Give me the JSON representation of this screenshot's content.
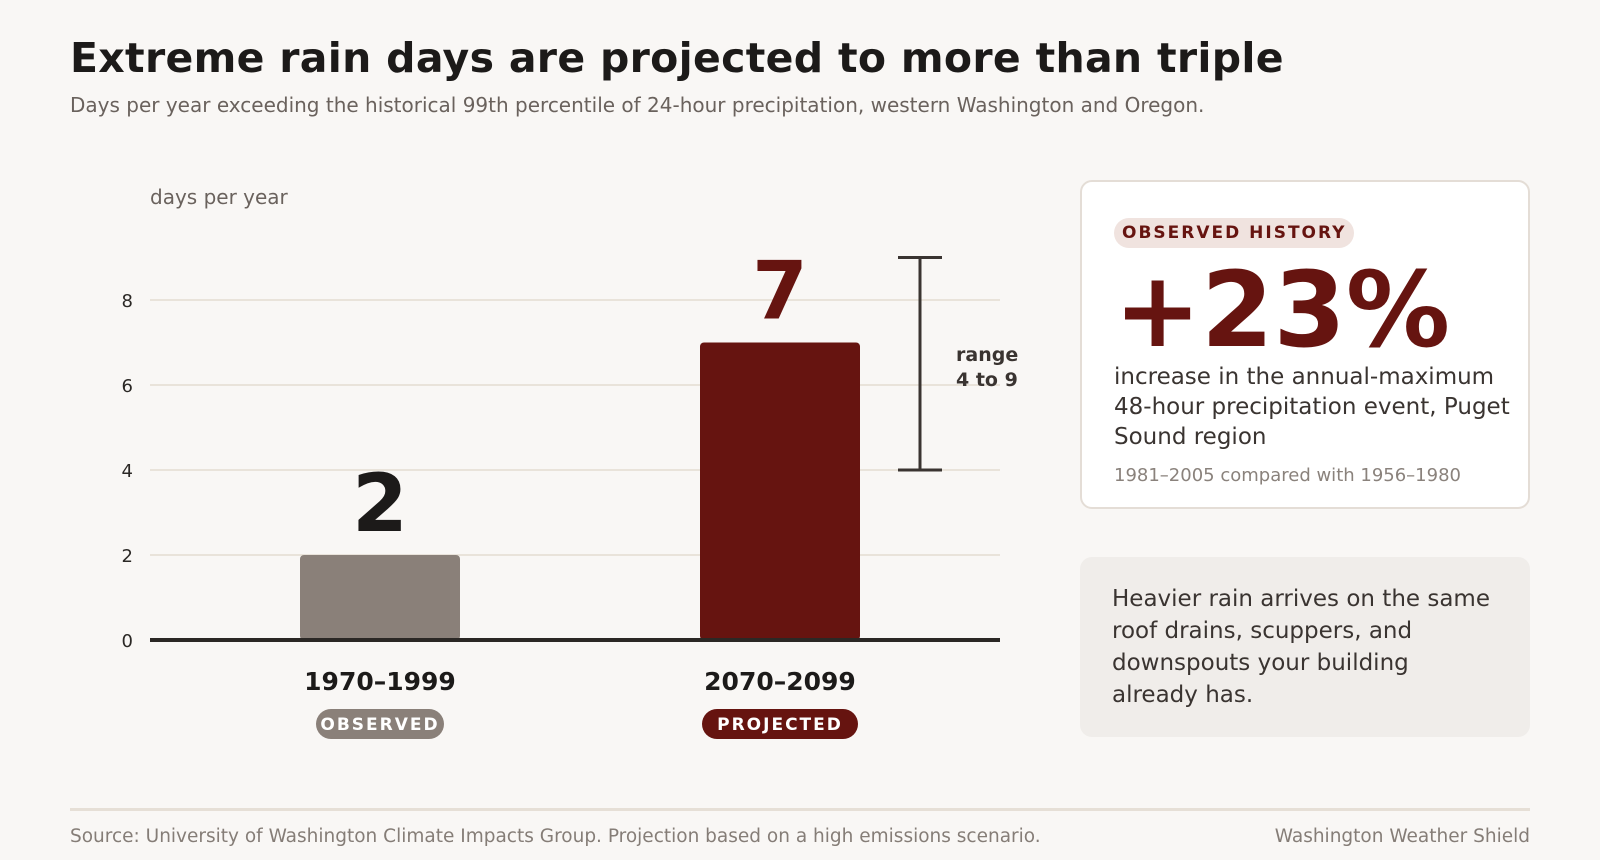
{
  "header": {
    "title": "Extreme rain days are projected to more than triple",
    "subtitle": "Days per year exceeding the historical 99th percentile of 24-hour precipitation, western Washington and Oregon."
  },
  "chart_data": {
    "type": "bar",
    "categories": [
      "1970–1999",
      "2070–2099"
    ],
    "values": [
      2,
      7
    ],
    "value_labels": [
      "2",
      "7"
    ],
    "category_badges": [
      "OBSERVED",
      "PROJECTED"
    ],
    "ylabel": "days per year",
    "yticks": [
      "0",
      "2",
      "4",
      "6",
      "8"
    ],
    "ylim": [
      0,
      9
    ],
    "grid": true,
    "error_range": {
      "category": "2070–2099",
      "low": 4,
      "high": 9
    },
    "range_label_line1": "range",
    "range_label_line2": "4 to 9",
    "colors": {
      "observed": "#8a8079",
      "projected": "#661410",
      "axis": "#2b2825",
      "grid": "#e9e3da"
    }
  },
  "stat_card": {
    "badge": "OBSERVED HISTORY",
    "value": "+23%",
    "description": "increase in the annual-maximum 48-hour precipitation event, Puget Sound region",
    "note": "1981–2005 compared with 1956–1980"
  },
  "callout": {
    "text": "Heavier rain arrives on the same roof drains, scuppers, and downspouts your building already has."
  },
  "footer": {
    "source": "Source: University of Washington Climate Impacts Group. Projection based on a high emissions scenario.",
    "brand": "Washington Weather Shield"
  }
}
